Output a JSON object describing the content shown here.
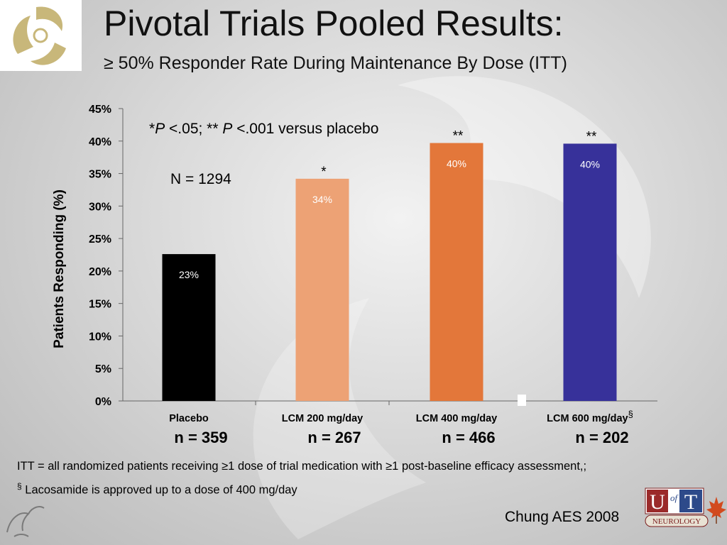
{
  "slide": {
    "title": "Pivotal Trials Pooled Results:",
    "subtitle": "≥ 50% Responder Rate During Maintenance By Dose (ITT)",
    "footnote_itt": "ITT = all randomized patients receiving ≥1 dose of trial medication with ≥1 post-baseline efficacy assessment,;",
    "footnote_symbol": "§",
    "footnote_lacosamide": " Lacosamide is approved up to a dose of 400 mg/day",
    "citation": "Chung AES 2008",
    "logo_text": {
      "u": "U",
      "of": "of",
      "t": "T",
      "dept": "NEUROLOGY"
    }
  },
  "chart_data": {
    "type": "bar",
    "ylabel": "Patients Responding (%)",
    "ylim": [
      0,
      45
    ],
    "yticks": [
      0,
      5,
      10,
      15,
      20,
      25,
      30,
      35,
      40,
      45
    ],
    "ytick_labels": [
      "0%",
      "5%",
      "10%",
      "15%",
      "20%",
      "25%",
      "30%",
      "35%",
      "40%",
      "45%"
    ],
    "categories": [
      "Placebo",
      "LCM 200 mg/day",
      "LCM 400 mg/day",
      "LCM 600 mg/day"
    ],
    "category_marks": [
      "",
      "",
      "",
      "§"
    ],
    "values": [
      22.6,
      34.2,
      39.7,
      39.6
    ],
    "data_labels": [
      "23%",
      "34%",
      "40%",
      "40%"
    ],
    "significance": [
      "",
      "*",
      "**",
      "**"
    ],
    "n_labels": [
      "n = 359",
      "n = 267",
      "n = 466",
      "n = 202"
    ],
    "bar_colors": [
      "#000000",
      "#eda275",
      "#e3773a",
      "#37319a"
    ],
    "annotation_significance": {
      "prefix": "*",
      "p1": "P",
      "mid": " <.05; ** ",
      "p2": "P",
      "suffix": " <.001 versus placebo"
    },
    "annotation_n": "N = 1294",
    "grid": false
  }
}
